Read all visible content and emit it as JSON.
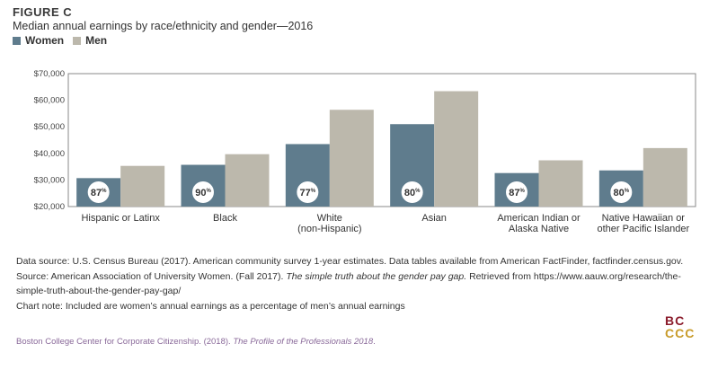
{
  "figure_label": "FIGURE C",
  "legend": {
    "women_label": "Women",
    "men_label": "Men",
    "women_color": "#5f7c8d",
    "men_color": "#bcb8ac"
  },
  "chart_data": {
    "type": "bar",
    "title": "Median annual earnings by race/ethnicity and gender—2016",
    "xlabel": "",
    "ylabel": "",
    "ylim": [
      20000,
      70000
    ],
    "yticks": [
      20000,
      30000,
      40000,
      50000,
      60000,
      70000
    ],
    "ytick_labels": [
      "$20,000",
      "$30,000",
      "$40,000",
      "$50,000",
      "$60,000",
      "$70,000"
    ],
    "categories": [
      [
        "Hispanic or Latinx"
      ],
      [
        "Black"
      ],
      [
        "White",
        "(non-Hispanic)"
      ],
      [
        "Asian"
      ],
      [
        "American Indian or",
        "Alaska Native"
      ],
      [
        "Native Hawaiian or",
        "other Pacific Islander"
      ]
    ],
    "series": [
      {
        "name": "Women",
        "values": [
          30700,
          35700,
          43500,
          51000,
          32600,
          33600
        ]
      },
      {
        "name": "Men",
        "values": [
          35300,
          39700,
          56400,
          63400,
          37400,
          42000
        ]
      }
    ],
    "annotations": [
      "87%",
      "90%",
      "77%",
      "80%",
      "87%",
      "80%"
    ]
  },
  "notes": {
    "data_source": "Data source: U.S. Census Bureau (2017). American community survey 1-year estimates. Data tables available from American FactFinder, factfinder.census.gov.",
    "source_prefix": "Source: American Association of University Women. (Fall 2017). ",
    "source_title": "The simple truth about the gender pay gap.",
    "source_suffix": " Retrieved from https://www.aauw.org/research/the-simple-truth-about-the-gender-pay-gap/",
    "chart_note": "Chart note: Included are women’s annual earnings as a percentage of men’s annual earnings"
  },
  "footer": {
    "credit_prefix": "Boston College Center for Corporate Citizenship. (2018). ",
    "credit_title": "The Profile of the Professionals 2018",
    "credit_suffix": "."
  },
  "logo": {
    "line1": "BC",
    "line2": "CCC"
  }
}
